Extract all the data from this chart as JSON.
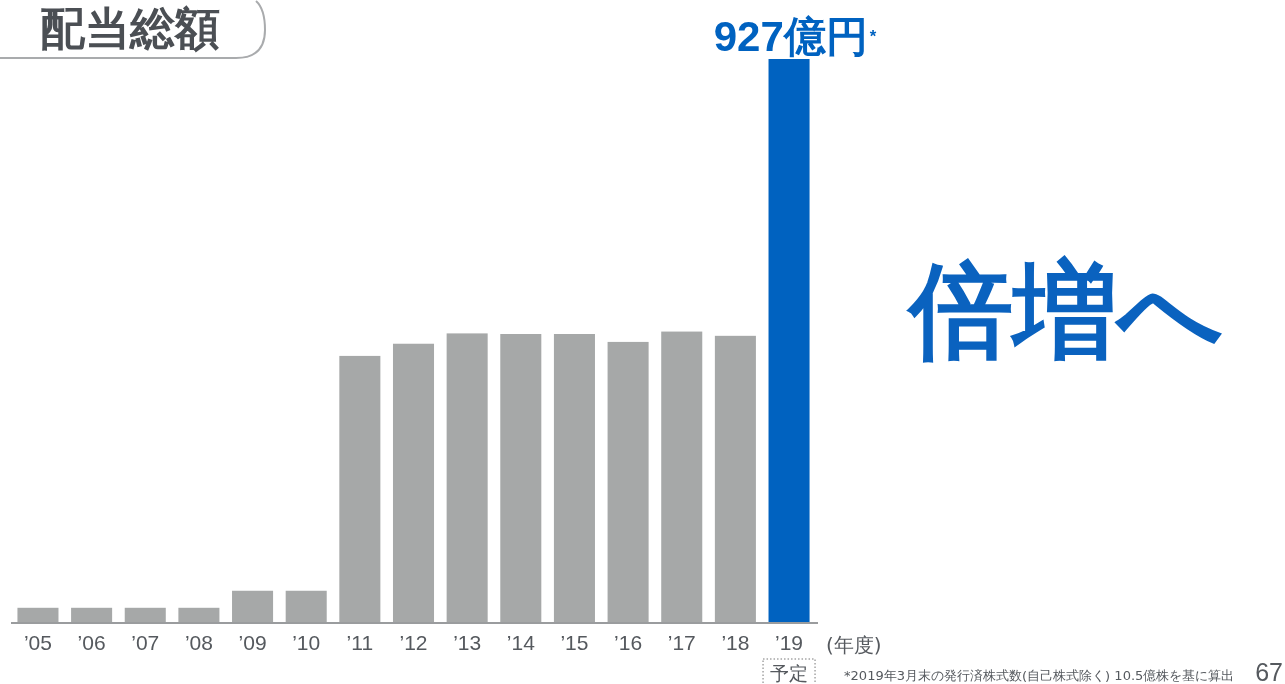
{
  "chart_data": {
    "type": "bar",
    "title": "配当総額",
    "xlabel": "(年度)",
    "categories": [
      "’05",
      "’06",
      "’07",
      "’08",
      "’09",
      "’10",
      "’11",
      "’12",
      "’13",
      "’14",
      "’15",
      "’16",
      "’17",
      "’18",
      "’19"
    ],
    "values": [
      25,
      25,
      25,
      25,
      53,
      53,
      439,
      459,
      476,
      475,
      475,
      462,
      479,
      472,
      927
    ],
    "colors": [
      "#a6a8a8",
      "#a6a8a8",
      "#a6a8a8",
      "#a6a8a8",
      "#a6a8a8",
      "#a6a8a8",
      "#a6a8a8",
      "#a6a8a8",
      "#a6a8a8",
      "#a6a8a8",
      "#a6a8a8",
      "#a6a8a8",
      "#a6a8a8",
      "#a6a8a8",
      "#0062c0"
    ],
    "value_labels": [
      null,
      null,
      null,
      null,
      null,
      null,
      null,
      null,
      null,
      null,
      null,
      null,
      null,
      null,
      "927億円$^{*}$"
    ],
    "ylim": [
      0,
      927
    ],
    "tick_labels": "x",
    "annotations": [
      "倍増へ",
      "予定",
      "*2019年3月末の発行済株式数(自己株式除く) 10.5億株を基に算出",
      "67"
    ]
  }
}
